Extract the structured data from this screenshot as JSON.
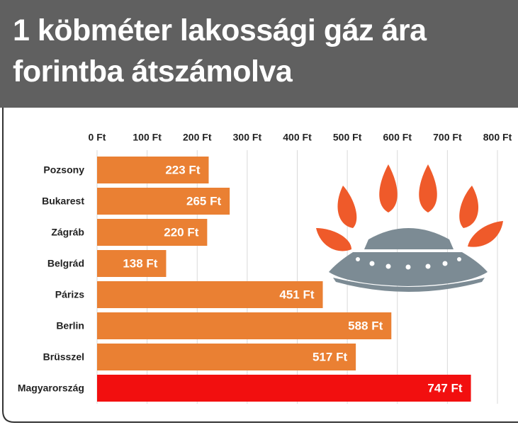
{
  "chart_data": {
    "type": "bar",
    "orientation": "horizontal",
    "title": "1 köbméter lakossági gáz ára forintba átszámolva",
    "categories": [
      "Pozsony",
      "Bukarest",
      "Zágráb",
      "Belgrád",
      "Párizs",
      "Berlin",
      "Brüsszel",
      "Magyarország"
    ],
    "values": [
      223,
      265,
      220,
      138,
      451,
      588,
      517,
      747
    ],
    "value_labels": [
      "223 Ft",
      "265 Ft",
      "220 Ft",
      "138 Ft",
      "451 Ft",
      "588 Ft",
      "517 Ft",
      "747 Ft"
    ],
    "colors": [
      "#ea8033",
      "#ea8033",
      "#ea8033",
      "#ea8033",
      "#ea8033",
      "#ea8033",
      "#ea8033",
      "#f20f0f"
    ],
    "xlim": [
      0,
      800
    ],
    "xticks": [
      {
        "value": 0,
        "label": "0 Ft"
      },
      {
        "value": 100,
        "label": "100 Ft"
      },
      {
        "value": 200,
        "label": "200 Ft"
      },
      {
        "value": 300,
        "label": "300 Ft"
      },
      {
        "value": 400,
        "label": "400 Ft"
      },
      {
        "value": 500,
        "label": "500 Ft"
      },
      {
        "value": 600,
        "label": "600 Ft"
      },
      {
        "value": 700,
        "label": "700 Ft"
      },
      {
        "value": 800,
        "label": "800 Ft"
      }
    ],
    "grid": true
  }
}
